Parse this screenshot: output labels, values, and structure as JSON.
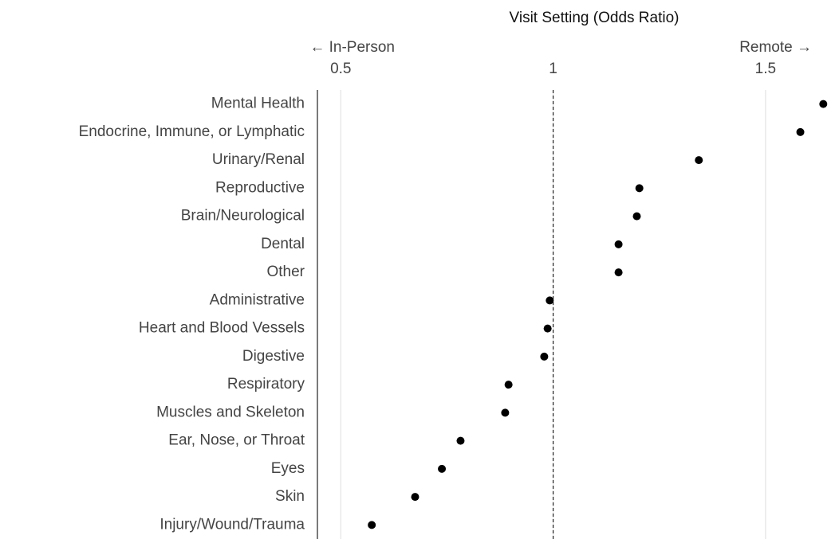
{
  "chart_data": {
    "type": "dot",
    "title": "Visit Setting (Odds Ratio)",
    "annotations": [
      "← In-Person",
      "Remote →"
    ],
    "categories": [
      "Mental Health",
      "Endocrine, Immune, or Lymphatic",
      "Urinary/Renal",
      "Reproductive",
      "Brain/Neurological",
      "Dental",
      "Other",
      "Administrative",
      "Heart and Blood Vessels",
      "Digestive",
      "Respiratory",
      "Muscles and Skeleton",
      "Ear, Nose, or Throat",
      "Eyes",
      "Skin",
      "Injury/Wound/Trauma"
    ],
    "values": [
      1.636,
      1.582,
      1.343,
      1.203,
      1.197,
      1.154,
      1.154,
      0.992,
      0.987,
      0.979,
      0.895,
      0.887,
      0.782,
      0.738,
      0.675,
      0.573
    ],
    "color": "#000000",
    "xlim": [
      0.445,
      1.673
    ],
    "xticks": [
      0.5,
      1,
      1.5
    ],
    "grid": true,
    "reference_line": 1
  }
}
